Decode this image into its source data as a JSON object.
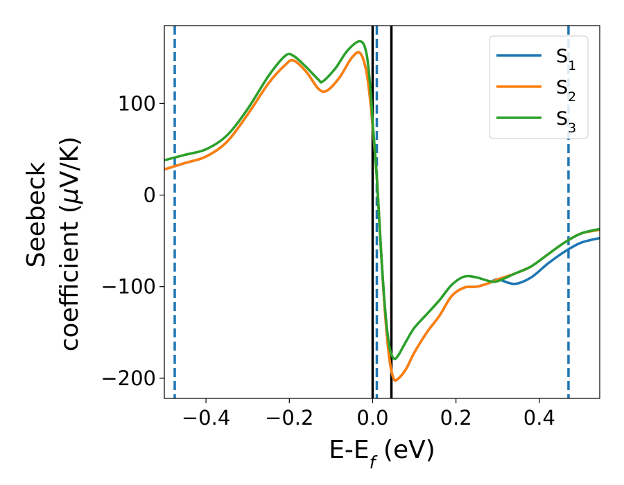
{
  "chart_data": {
    "type": "line",
    "title": "",
    "xlabel": {
      "main": "E-E",
      "subscript": "f",
      "suffix": " (eV)"
    },
    "ylabel": {
      "line1": "Seebeck",
      "line2_prefix": "coefficient  (",
      "line2_mu": "μ",
      "line2_suffix": "V/K)"
    },
    "xlim": [
      -0.5,
      0.545
    ],
    "ylim": [
      -222,
      185
    ],
    "xticks": [
      {
        "value": -0.4,
        "label": "−0.4"
      },
      {
        "value": -0.2,
        "label": "−0.2"
      },
      {
        "value": 0.0,
        "label": "0.0"
      },
      {
        "value": 0.2,
        "label": "0.2"
      },
      {
        "value": 0.4,
        "label": "0.4"
      }
    ],
    "yticks": [
      {
        "value": 100,
        "label": "100"
      },
      {
        "value": 0,
        "label": "0"
      },
      {
        "value": -100,
        "label": "−100"
      },
      {
        "value": -200,
        "label": "−200"
      }
    ],
    "grid": false,
    "legend_position": "top-right",
    "vlines": [
      {
        "x": -0.475,
        "style": "dashed",
        "color": "#1f77b4"
      },
      {
        "x": 0.01,
        "style": "dashed",
        "color": "#1f77b4"
      },
      {
        "x": 0.47,
        "style": "dashed",
        "color": "#1f77b4"
      },
      {
        "x": 0.0,
        "style": "solid",
        "color": "#000000"
      },
      {
        "x": 0.045,
        "style": "solid",
        "color": "#000000"
      }
    ],
    "series": [
      {
        "name": "S",
        "subscript": "1",
        "color": "#1f77b4",
        "x": [
          -0.5,
          -0.45,
          -0.4,
          -0.35,
          -0.3,
          -0.25,
          -0.21,
          -0.19,
          -0.16,
          -0.13,
          -0.11,
          -0.08,
          -0.05,
          -0.03,
          -0.015,
          -0.005,
          0.0,
          0.01,
          0.02,
          0.03,
          0.04,
          0.05,
          0.06,
          0.08,
          0.1,
          0.13,
          0.16,
          0.19,
          0.22,
          0.25,
          0.28,
          0.3,
          0.34,
          0.38,
          0.42,
          0.46,
          0.5,
          0.545
        ],
        "y": [
          28,
          35,
          42,
          58,
          88,
          122,
          142,
          147,
          135,
          116,
          114,
          128,
          150,
          155,
          135,
          100,
          75,
          20,
          -60,
          -130,
          -178,
          -200,
          -201,
          -190,
          -172,
          -150,
          -132,
          -110,
          -101,
          -100,
          -96,
          -92,
          -97,
          -90,
          -75,
          -62,
          -52,
          -47
        ]
      },
      {
        "name": "S",
        "subscript": "2",
        "color": "#ff7f0e",
        "x": [
          -0.5,
          -0.45,
          -0.4,
          -0.35,
          -0.3,
          -0.25,
          -0.21,
          -0.19,
          -0.16,
          -0.13,
          -0.11,
          -0.08,
          -0.05,
          -0.03,
          -0.015,
          -0.005,
          0.0,
          0.01,
          0.02,
          0.03,
          0.04,
          0.05,
          0.06,
          0.08,
          0.1,
          0.13,
          0.16,
          0.19,
          0.22,
          0.25,
          0.28,
          0.3,
          0.34,
          0.38,
          0.42,
          0.46,
          0.5,
          0.545
        ],
        "y": [
          28,
          35,
          42,
          58,
          88,
          122,
          142,
          147,
          135,
          116,
          114,
          128,
          150,
          155,
          135,
          100,
          75,
          20,
          -60,
          -130,
          -178,
          -200,
          -201,
          -190,
          -172,
          -150,
          -132,
          -110,
          -101,
          -100,
          -96,
          -92,
          -86,
          -78,
          -65,
          -52,
          -42,
          -38
        ]
      },
      {
        "name": "S",
        "subscript": "3",
        "color": "#2ca02c",
        "x": [
          -0.5,
          -0.45,
          -0.4,
          -0.35,
          -0.3,
          -0.25,
          -0.21,
          -0.19,
          -0.16,
          -0.13,
          -0.12,
          -0.09,
          -0.06,
          -0.03,
          -0.015,
          -0.005,
          0.0,
          0.01,
          0.02,
          0.03,
          0.04,
          0.05,
          0.06,
          0.08,
          0.1,
          0.13,
          0.16,
          0.19,
          0.22,
          0.25,
          0.28,
          0.3,
          0.34,
          0.38,
          0.42,
          0.46,
          0.5,
          0.545
        ],
        "y": [
          38,
          44,
          50,
          65,
          94,
          130,
          152,
          152,
          140,
          126,
          124,
          138,
          158,
          168,
          155,
          115,
          80,
          20,
          -60,
          -125,
          -165,
          -178,
          -176,
          -160,
          -145,
          -130,
          -115,
          -98,
          -89,
          -90,
          -94,
          -94,
          -86,
          -78,
          -65,
          -52,
          -42,
          -37
        ]
      }
    ]
  }
}
